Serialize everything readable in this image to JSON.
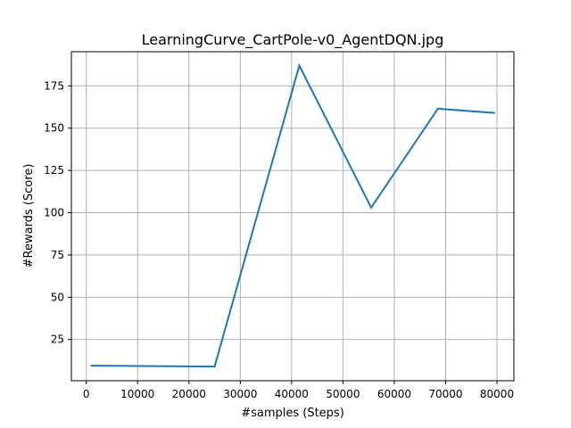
{
  "chart_data": {
    "type": "line",
    "title": "LearningCurve_CartPole-v0_AgentDQN.jpg",
    "xlabel": "#samples (Steps)",
    "ylabel": "#Rewards (Score)",
    "xlim": [
      -2900,
      83300
    ],
    "ylim": [
      0.6,
      195.2
    ],
    "xticks": [
      0,
      10000,
      20000,
      30000,
      40000,
      50000,
      60000,
      70000,
      80000
    ],
    "yticks": [
      25,
      50,
      75,
      100,
      125,
      150,
      175
    ],
    "grid": true,
    "series": [
      {
        "color": "#1f77b4",
        "x": [
          1000,
          25000,
          41500,
          55500,
          68500,
          79500
        ],
        "y": [
          9.5,
          9.0,
          187.0,
          103.0,
          161.5,
          159.0
        ]
      }
    ]
  }
}
